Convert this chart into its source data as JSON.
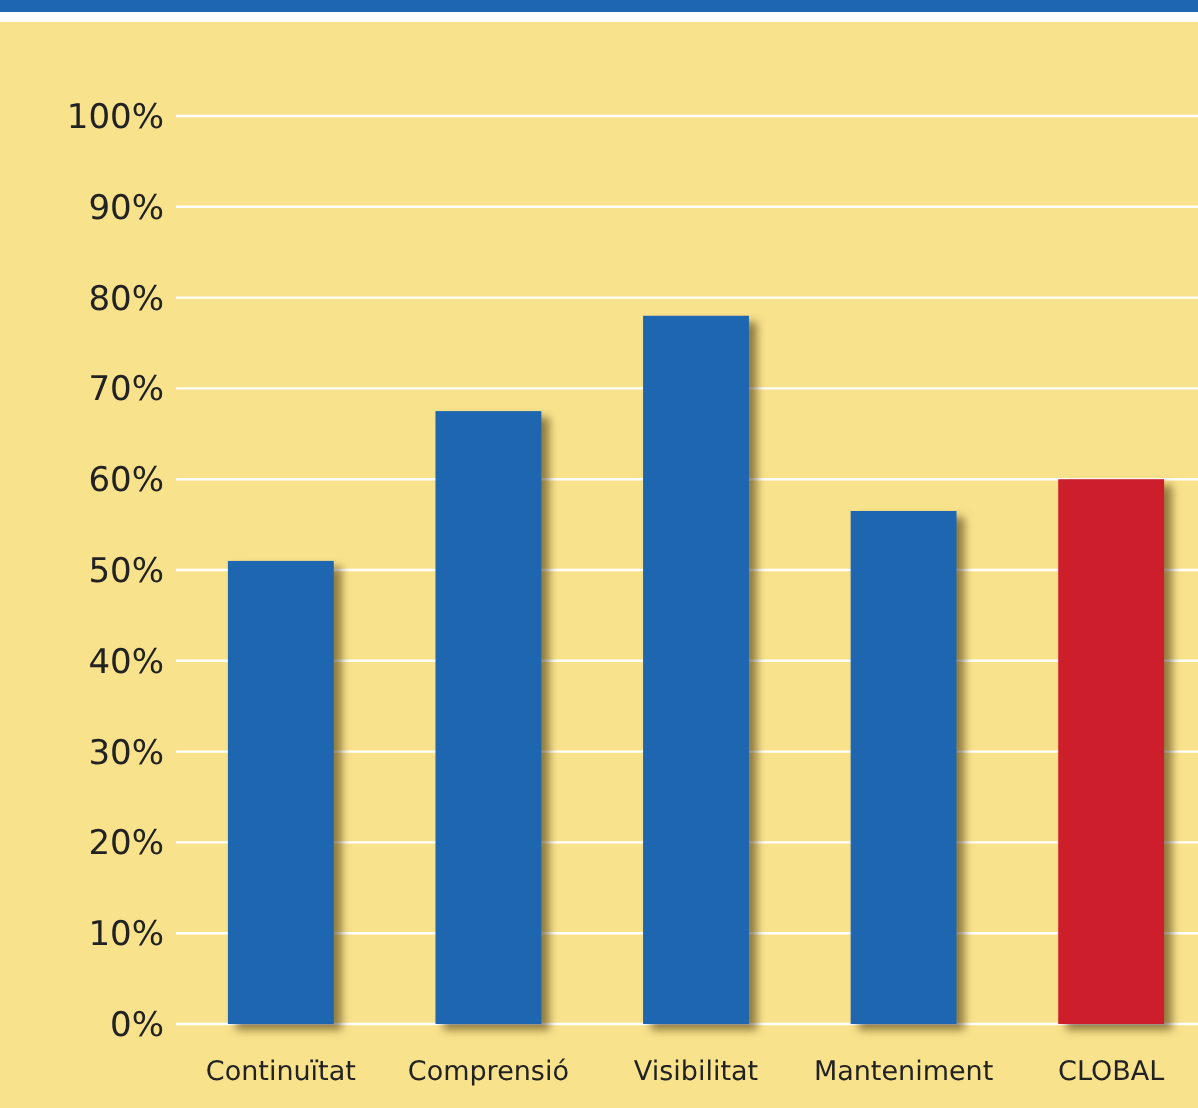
{
  "chart_data": {
    "type": "bar",
    "categories": [
      "Continuïtat",
      "Comprensió",
      "Visibilitat",
      "Manteniment",
      "CLOBAL"
    ],
    "values": [
      51,
      67.5,
      78,
      56.5,
      60
    ],
    "colors": [
      "#1f66b0",
      "#1f66b0",
      "#1f66b0",
      "#1f66b0",
      "#cc1f2b"
    ],
    "ylim": [
      0,
      100
    ],
    "yticks": [
      {
        "value": 0,
        "label": "0%"
      },
      {
        "value": 10,
        "label": "10%"
      },
      {
        "value": 20,
        "label": "20%"
      },
      {
        "value": 30,
        "label": "30%"
      },
      {
        "value": 40,
        "label": "40%"
      },
      {
        "value": 50,
        "label": "50%"
      },
      {
        "value": 60,
        "label": "60%"
      },
      {
        "value": 70,
        "label": "70%"
      },
      {
        "value": 80,
        "label": "80%"
      },
      {
        "value": 90,
        "label": "90%"
      },
      {
        "value": 100,
        "label": "100%"
      }
    ],
    "grid": "y"
  }
}
